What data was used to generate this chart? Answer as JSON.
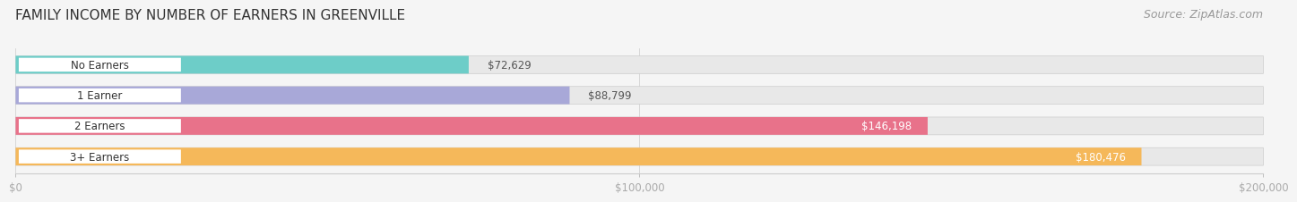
{
  "title": "FAMILY INCOME BY NUMBER OF EARNERS IN GREENVILLE",
  "source": "Source: ZipAtlas.com",
  "categories": [
    "No Earners",
    "1 Earner",
    "2 Earners",
    "3+ Earners"
  ],
  "values": [
    72629,
    88799,
    146198,
    180476
  ],
  "bar_colors": [
    "#6dcdc8",
    "#a8a8d8",
    "#e8728a",
    "#f5b85a"
  ],
  "label_colors": [
    "#333333",
    "#333333",
    "#e8728a",
    "#f5b85a"
  ],
  "value_labels": [
    "$72,629",
    "$88,799",
    "$146,198",
    "$180,476"
  ],
  "value_label_colors": [
    "#555555",
    "#555555",
    "#ffffff",
    "#ffffff"
  ],
  "xlim": [
    0,
    200000
  ],
  "xticks": [
    0,
    100000,
    200000
  ],
  "xtick_labels": [
    "$0",
    "$100,000",
    "$200,000"
  ],
  "title_fontsize": 11,
  "source_fontsize": 9,
  "bar_height": 0.58,
  "bg_color": "#f5f5f5",
  "bar_bg_color": "#e8e8e8"
}
